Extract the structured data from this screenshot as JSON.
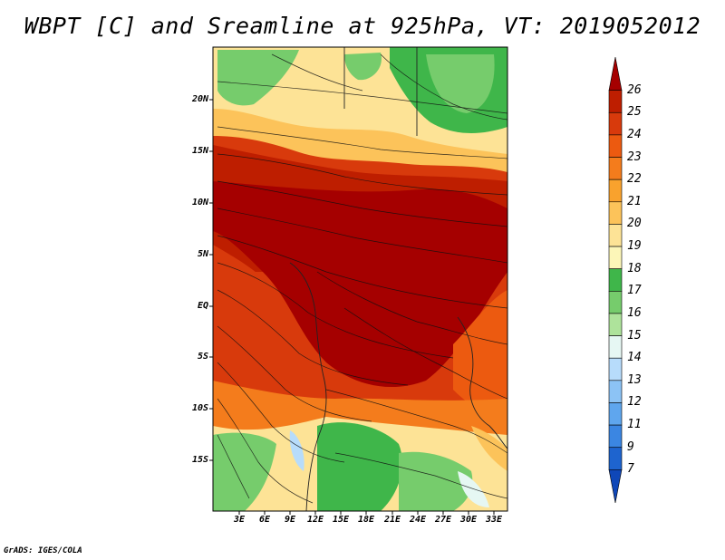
{
  "title": "WBPT [C] and Sreamline at 925hPa, VT: 2019052012",
  "credit": "GrADS: IGES/COLA",
  "axes": {
    "lat_ticks": [
      "20N",
      "15N",
      "10N",
      "5N",
      "EQ",
      "5S",
      "10S",
      "15S"
    ],
    "lon_ticks": [
      "3E",
      "6E",
      "9E",
      "12E",
      "15E",
      "18E",
      "21E",
      "24E",
      "27E",
      "30E",
      "33E"
    ]
  },
  "colorbar": {
    "labels": [
      "26",
      "25",
      "24",
      "23",
      "22",
      "21",
      "20",
      "19",
      "18",
      "17",
      "16",
      "15",
      "14",
      "13",
      "12",
      "11",
      "9",
      "7"
    ],
    "colors": [
      "#a50000",
      "#be1e00",
      "#d83a0c",
      "#ec5a10",
      "#f47c1c",
      "#f9a22d",
      "#fcc35a",
      "#fde396",
      "#fcf6b8",
      "#3fb64a",
      "#76cc6c",
      "#aee39b",
      "#e6f7f3",
      "#b7dcfb",
      "#8cc3f5",
      "#5fa6ee",
      "#3b86e2",
      "#1e64cf",
      "#0f47b8"
    ]
  }
}
